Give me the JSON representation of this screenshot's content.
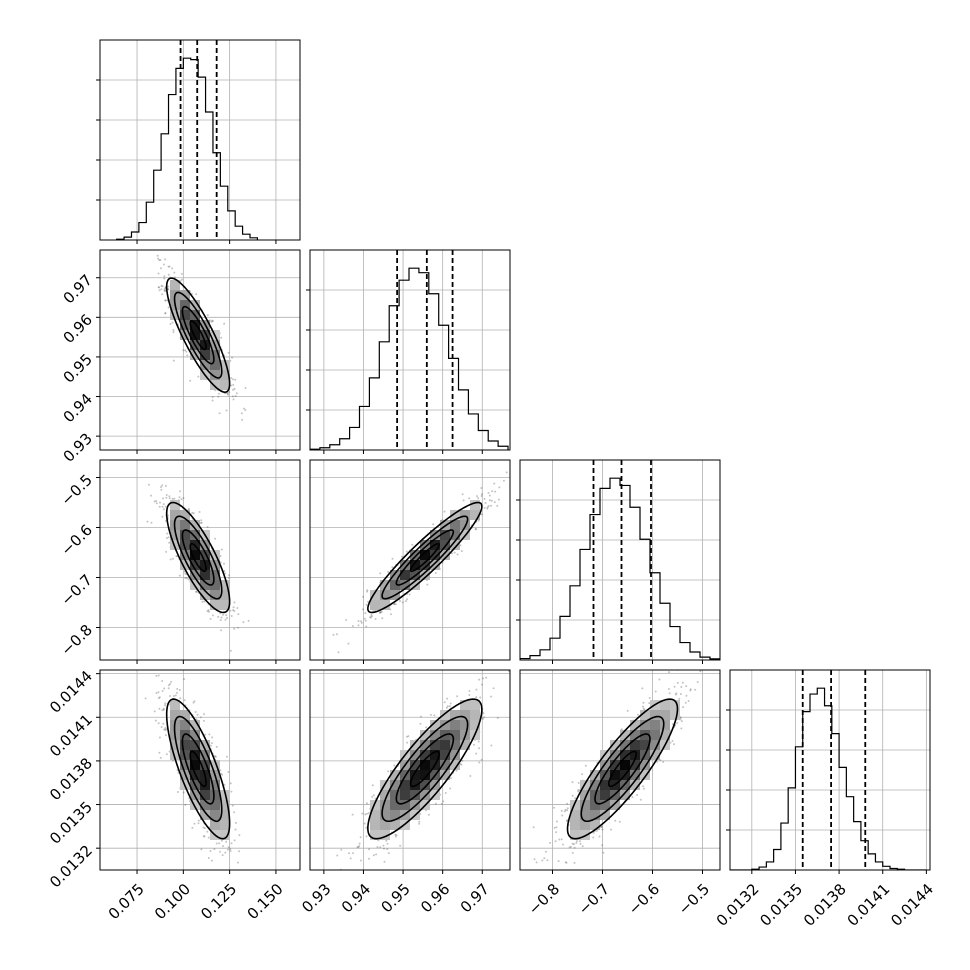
{
  "chart_data": {
    "type": "corner",
    "parameters": [
      {
        "range": [
          0.055,
          0.163
        ],
        "ticks": [
          0.075,
          0.1,
          0.125,
          0.15
        ],
        "tick_labels": [
          "0.075",
          "0.100",
          "0.125",
          "0.150"
        ],
        "mean": 0.108,
        "std": 0.0085,
        "quantiles": [
          0.0985,
          0.1075,
          0.118
        ],
        "hist_bins": [
          0.064,
          0.068,
          0.072,
          0.076,
          0.08,
          0.084,
          0.088,
          0.092,
          0.096,
          0.1,
          0.104,
          0.108,
          0.112,
          0.116,
          0.12,
          0.124,
          0.128,
          0.132,
          0.136,
          0.14
        ],
        "hist_counts": [
          5,
          20,
          55,
          120,
          260,
          480,
          730,
          1000,
          1180,
          1250,
          1240,
          1120,
          880,
          600,
          370,
          200,
          95,
          40,
          15
        ]
      },
      {
        "range": [
          0.9265,
          0.977
        ],
        "ticks": [
          0.93,
          0.94,
          0.95,
          0.96,
          0.97
        ],
        "tick_labels": [
          "0.93",
          "0.94",
          "0.95",
          "0.96",
          "0.97"
        ],
        "mean": 0.9555,
        "std": 0.0072,
        "quantiles": [
          0.9485,
          0.956,
          0.9625
        ],
        "hist_bins": [
          0.9265,
          0.929,
          0.9315,
          0.934,
          0.9365,
          0.939,
          0.9415,
          0.944,
          0.9465,
          0.949,
          0.9515,
          0.954,
          0.9565,
          0.959,
          0.9615,
          0.964,
          0.9665,
          0.969,
          0.9715,
          0.974,
          0.9765
        ],
        "hist_counts": [
          5,
          15,
          35,
          75,
          150,
          290,
          480,
          720,
          960,
          1130,
          1210,
          1180,
          1040,
          830,
          610,
          400,
          240,
          130,
          60,
          25
        ]
      },
      {
        "range": [
          -0.865,
          -0.465
        ],
        "ticks": [
          -0.8,
          -0.7,
          -0.6,
          -0.5
        ],
        "tick_labels": [
          "−0.8",
          "−0.7",
          "−0.6",
          "−0.5"
        ],
        "mean": -0.66,
        "std": 0.055,
        "quantiles": [
          -0.718,
          -0.662,
          -0.603
        ],
        "hist_bins": [
          -0.865,
          -0.845,
          -0.825,
          -0.805,
          -0.785,
          -0.765,
          -0.745,
          -0.725,
          -0.705,
          -0.685,
          -0.665,
          -0.645,
          -0.625,
          -0.605,
          -0.585,
          -0.565,
          -0.545,
          -0.525,
          -0.505,
          -0.485,
          -0.465
        ],
        "hist_counts": [
          10,
          30,
          70,
          150,
          300,
          510,
          760,
          1000,
          1180,
          1250,
          1200,
          1050,
          830,
          600,
          390,
          230,
          120,
          55,
          20,
          8
        ]
      },
      {
        "range": [
          0.01305,
          0.014425
        ],
        "ticks": [
          0.0132,
          0.0135,
          0.0138,
          0.0141,
          0.0144
        ],
        "tick_labels": [
          "0.0132",
          "0.0135",
          "0.0138",
          "0.0141",
          "0.0144"
        ],
        "mean": 0.013745,
        "std": 0.00024,
        "quantiles": [
          0.01355,
          0.013745,
          0.01398
        ],
        "hist_bins": [
          0.01305,
          0.0131,
          0.01315,
          0.0132,
          0.01325,
          0.0133,
          0.01335,
          0.0134,
          0.01345,
          0.0135,
          0.01355,
          0.0136,
          0.01365,
          0.0137,
          0.01375,
          0.0138,
          0.01385,
          0.0139,
          0.01395,
          0.014,
          0.01405,
          0.0141,
          0.01415,
          0.0142,
          0.01425,
          0.0143,
          0.01435,
          0.0144
        ],
        "hist_counts": [
          0,
          0,
          0,
          5,
          20,
          55,
          140,
          320,
          560,
          840,
          1080,
          1200,
          1240,
          1120,
          930,
          700,
          500,
          330,
          200,
          110,
          55,
          25,
          10,
          5,
          0,
          0,
          0
        ]
      }
    ],
    "correlations": {
      "1_0": -0.85,
      "2_0": -0.8,
      "2_1": 0.93,
      "3_0": -0.78,
      "3_1": 0.85,
      "3_2": 0.86
    },
    "contour_levels_sigma": [
      0.5,
      1.0,
      1.5,
      2.0
    ],
    "grid": true,
    "colors": {
      "line": "#000000",
      "grid": "#b0b0b0",
      "scatter": "#555555",
      "density_dark": "#000000",
      "density_light": "#d9d9d9"
    }
  }
}
